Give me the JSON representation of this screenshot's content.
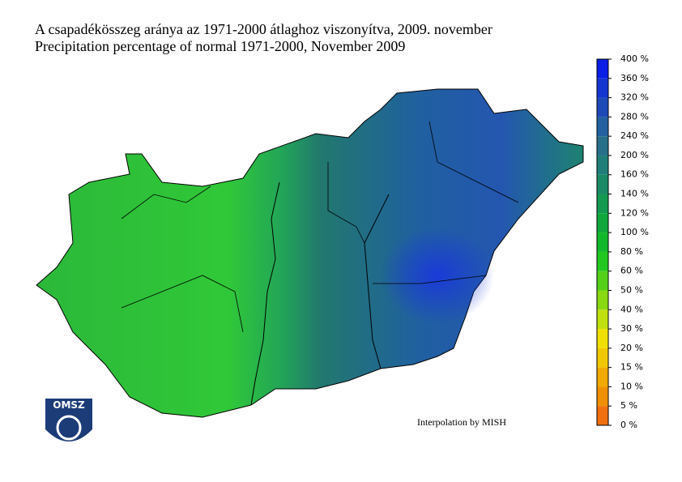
{
  "header": {
    "title_hu": "A csapadékösszeg aránya az 1971-2000 átlaghoz viszonyítva, 2009. november",
    "title_en": "Precipitation percentage of normal 1971-2000, November 2009"
  },
  "colorbar": {
    "labels": [
      "400 %",
      "360 %",
      "320 %",
      "280 %",
      "240 %",
      "200 %",
      "160 %",
      "140 %",
      "120 %",
      "100 %",
      "80 %",
      "60 %",
      "50 %",
      "40 %",
      "30 %",
      "20 %",
      "15 %",
      "10 %",
      "5 %",
      "0 %"
    ],
    "colors": [
      "#0a1ee6",
      "#1535d0",
      "#1e4ab8",
      "#2460a0",
      "#28708a",
      "#1f7f78",
      "#1a8a66",
      "#149a50",
      "#10a83c",
      "#12b82c",
      "#22c820",
      "#55d018",
      "#88d812",
      "#c0e010",
      "#f0e000",
      "#f0c800",
      "#f0aa00",
      "#f09000",
      "#f07010"
    ]
  },
  "credit": "Interpolation by MISH",
  "logo": "OMSZ"
}
